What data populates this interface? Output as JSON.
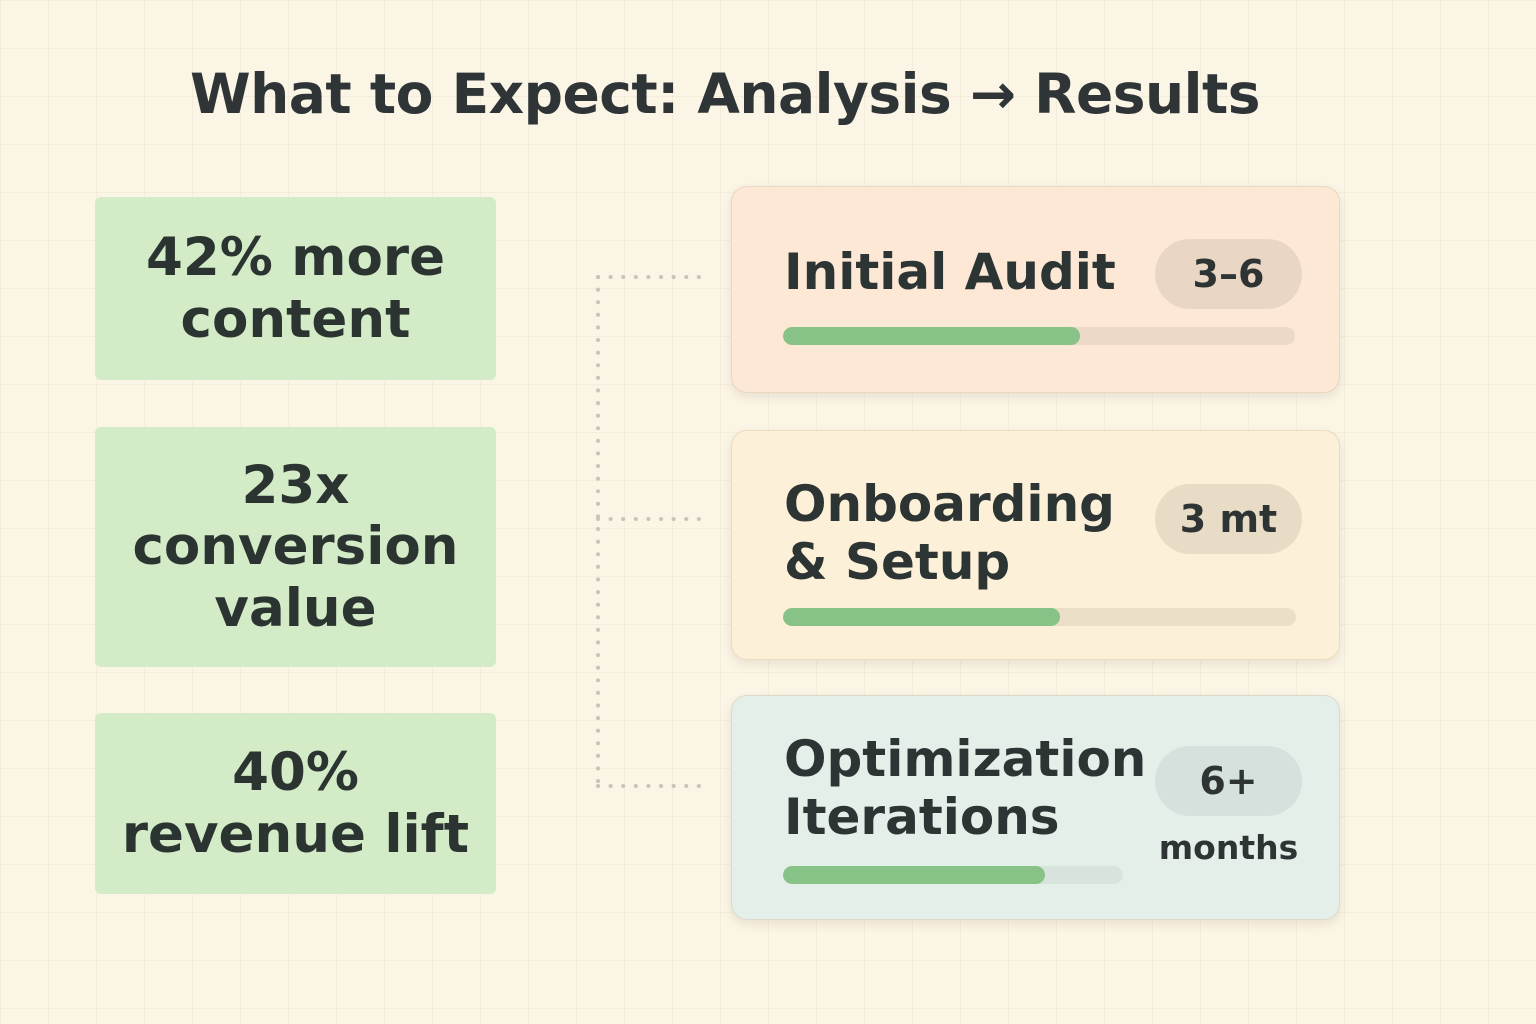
{
  "title": "What to Expect: Analysis → Results",
  "metrics": [
    {
      "lines": [
        "42% more",
        "content"
      ]
    },
    {
      "lines": [
        "23x",
        "conversion",
        "value"
      ]
    },
    {
      "lines": [
        "40%",
        "revenue lift"
      ]
    }
  ],
  "phases": [
    {
      "name_lines": [
        "Initial Audit"
      ],
      "duration": "3–6",
      "duration_unit": "",
      "progress_fraction": 0.58
    },
    {
      "name_lines": [
        "Onboarding",
        "& Setup"
      ],
      "duration": "3 mt",
      "duration_unit": "",
      "progress_fraction": 0.54
    },
    {
      "name_lines": [
        "Optimization",
        "Iterations"
      ],
      "duration": "6+",
      "duration_unit": "months",
      "progress_fraction": 0.77
    }
  ],
  "colors": {
    "background": "#fbf5e6",
    "metric_box": "#d3ecc7",
    "progress_fill": "#87c386",
    "phase_audit": "#fde8d6",
    "phase_onboarding": "#fdf0d8",
    "phase_optimization": "#e4efe9",
    "connector_dots": "#c9c4b8"
  }
}
